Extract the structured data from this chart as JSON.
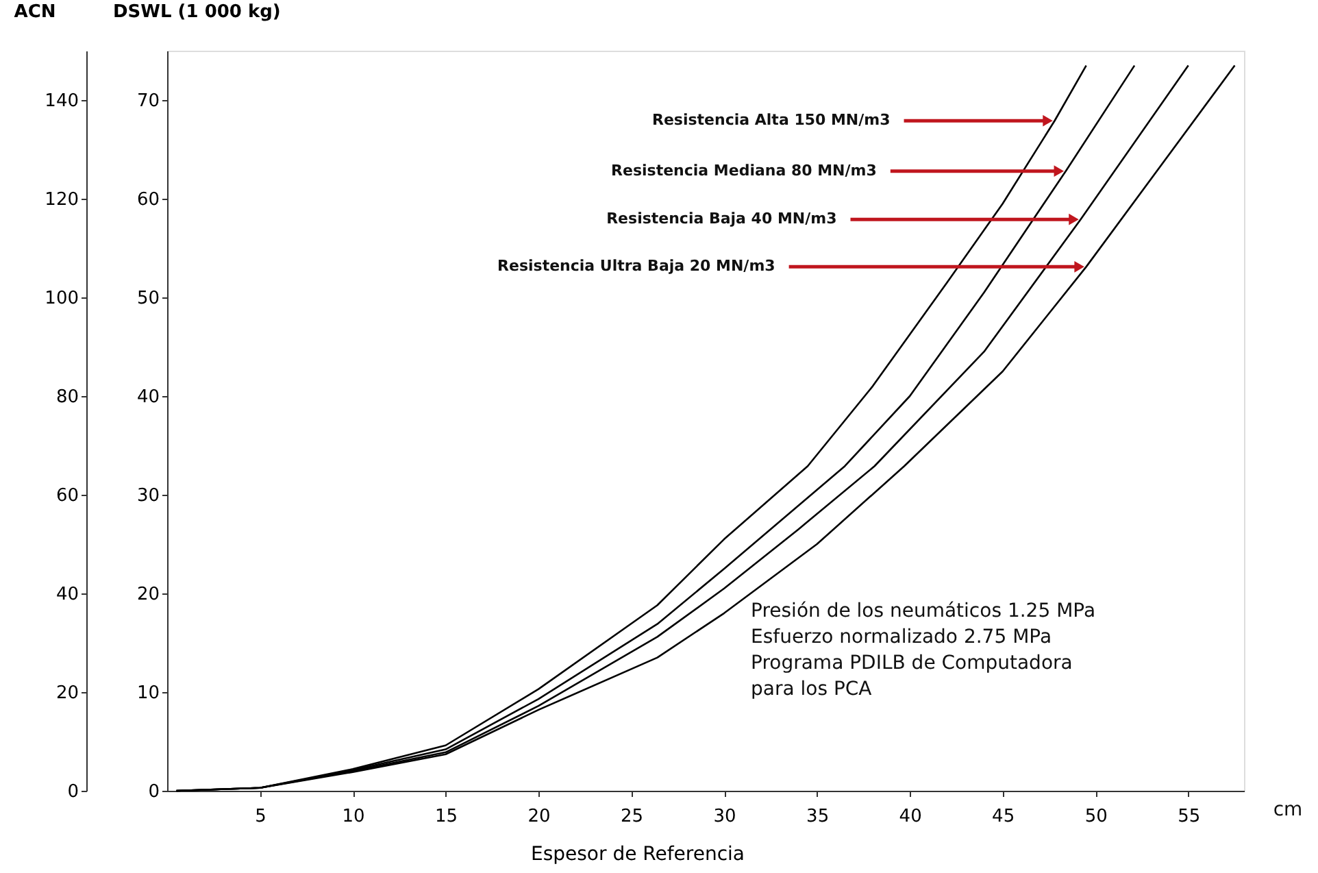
{
  "chart_data": {
    "type": "line",
    "xlabel": "Espesor de Referencia",
    "ylabel": "DSWL (1 000 kg)",
    "y2label": "ACN",
    "xlim": [
      0,
      58
    ],
    "xticks": [
      5,
      10,
      15,
      20,
      25,
      30,
      35,
      40,
      45,
      50,
      55
    ],
    "ylim": [
      0,
      75
    ],
    "yticks": [
      0,
      10,
      20,
      30,
      40,
      50,
      60,
      70
    ],
    "y2lim": [
      0,
      150
    ],
    "y2ticks": [
      0,
      20,
      40,
      60,
      80,
      100,
      120,
      140
    ],
    "grid": false,
    "legend": false,
    "marker": "none",
    "line_style": "solid",
    "series": [
      {
        "color": "#000000",
        "x": [
          0.5,
          5,
          10,
          15,
          20,
          26.4,
          30,
          34.5,
          38,
          42,
          45,
          47.8,
          49.5
        ],
        "values": [
          0,
          0.3,
          2.2,
          4.6,
          10.3,
          18.8,
          25.5,
          32.9,
          41,
          51.5,
          59.5,
          67.9,
          73.5
        ]
      },
      {
        "color": "#000000",
        "x": [
          0.5,
          5,
          10,
          15,
          20,
          26.4,
          30,
          36.5,
          40,
          44,
          48.4,
          52.1
        ],
        "values": [
          0,
          0.3,
          2.1,
          4.2,
          9.3,
          16.9,
          22.5,
          32.9,
          40,
          50.5,
          62.8,
          73.5
        ]
      },
      {
        "color": "#000000",
        "x": [
          0.5,
          5,
          10,
          15,
          20,
          26.4,
          30,
          34,
          38.1,
          44,
          49.2,
          55
        ],
        "values": [
          0,
          0.3,
          2.0,
          3.9,
          8.6,
          15.6,
          20.5,
          26.5,
          32.9,
          44.5,
          57.9,
          73.5
        ]
      },
      {
        "color": "#000000",
        "x": [
          0.5,
          5,
          10,
          15,
          20,
          26.4,
          30,
          35,
          39.7,
          45,
          49.5,
          57.5
        ],
        "values": [
          0,
          0.3,
          1.9,
          3.7,
          8.2,
          13.5,
          18,
          25,
          32.9,
          42.5,
          53.1,
          73.5
        ]
      }
    ],
    "annotations": [
      {
        "text": "Resistencia Alta 150 MN/m3",
        "x": 47.8,
        "y": 67.9
      },
      {
        "text": "Resistencia Mediana 80 MN/m3",
        "x": 48.4,
        "y": 62.8
      },
      {
        "text": "Resistencia Baja 40 MN/m3",
        "x": 49.2,
        "y": 57.9
      },
      {
        "text": "Resistencia Ultra Baja 20 MN/m3",
        "x": 49.5,
        "y": 53.1
      },
      "cm",
      "Presión de los neumáticos 1.25 MPa\nEsfuerzo normalizado 2.75 MPa\nPrograma PDILB de Computadora\npara los PCA"
    ]
  }
}
